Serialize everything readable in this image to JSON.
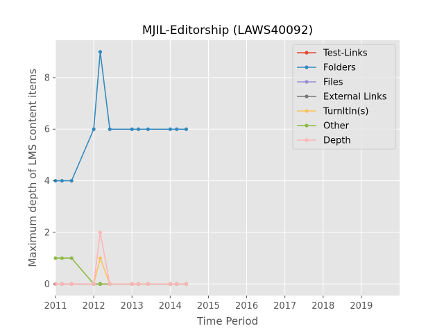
{
  "chart_data": {
    "type": "line",
    "title": "MJIL-Editorship (LAWS40092)",
    "xlabel": "Time Period",
    "ylabel": "Maximum depth of LMS content items",
    "xlim": [
      2011,
      2020
    ],
    "ylim": [
      -0.45,
      9.45
    ],
    "x_ticks": [
      2011,
      2012,
      2013,
      2014,
      2015,
      2016,
      2017,
      2018,
      2019
    ],
    "x_tick_labels": [
      "2011",
      "2012",
      "2013",
      "2014",
      "2015",
      "2016",
      "2017",
      "2018",
      "2019"
    ],
    "y_ticks": [
      0,
      2,
      4,
      6,
      8
    ],
    "y_tick_labels": [
      "0",
      "2",
      "4",
      "6",
      "8"
    ],
    "grid": true,
    "legend_position": "top-right",
    "x": [
      2011.0,
      2011.17,
      2011.42,
      2012.0,
      2012.17,
      2012.42,
      2013.0,
      2013.17,
      2013.42,
      2014.0,
      2014.17,
      2014.42
    ],
    "series": [
      {
        "name": "Test-Links",
        "color": "#E24A33",
        "values": [
          0,
          0,
          0,
          0,
          0,
          0,
          0,
          0,
          0,
          0,
          0,
          0
        ]
      },
      {
        "name": "Folders",
        "color": "#348ABD",
        "values": [
          4,
          4,
          4,
          6,
          9,
          6,
          6,
          6,
          6,
          6,
          6,
          6
        ]
      },
      {
        "name": "Files",
        "color": "#988ED5",
        "values": [
          0,
          0,
          0,
          0,
          0,
          0,
          0,
          0,
          0,
          0,
          0,
          0
        ]
      },
      {
        "name": "External Links",
        "color": "#777777",
        "values": [
          0,
          0,
          0,
          0,
          0,
          0,
          0,
          0,
          0,
          0,
          0,
          0
        ]
      },
      {
        "name": "TurnItIn(s)",
        "color": "#FBC15E",
        "values": [
          0,
          0,
          0,
          0,
          1,
          0,
          0,
          0,
          0,
          0,
          0,
          0
        ]
      },
      {
        "name": "Other",
        "color": "#8EBA42",
        "values": [
          1,
          1,
          1,
          0,
          0,
          0,
          0,
          0,
          0,
          0,
          0,
          0
        ]
      },
      {
        "name": "Depth",
        "color": "#FFB5B8",
        "values": [
          0,
          0,
          0,
          0,
          2,
          0,
          0,
          0,
          0,
          0,
          0,
          0
        ]
      }
    ]
  }
}
